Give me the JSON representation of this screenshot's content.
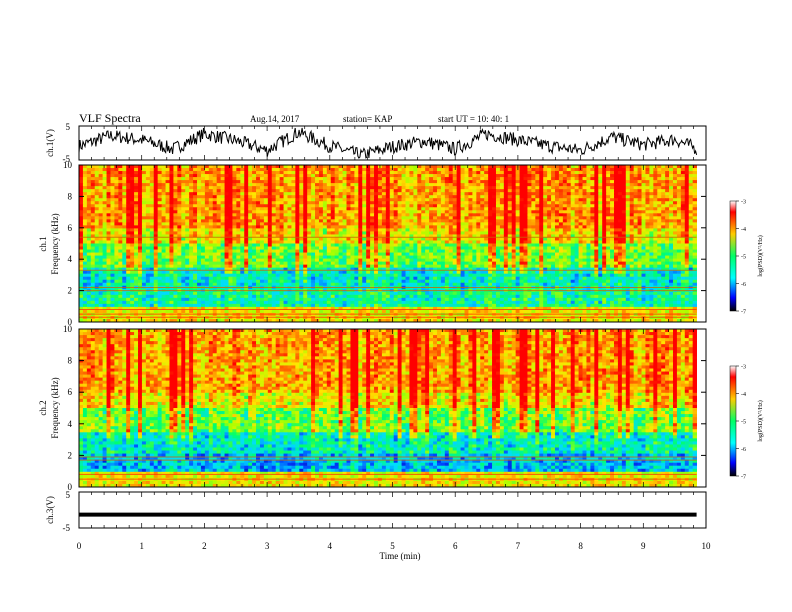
{
  "header": {
    "title": "VLF Spectra",
    "date": "Aug.14, 2017",
    "station": "station= KAP",
    "start": "start  UT  =    10: 40: 1"
  },
  "colors": {
    "spectrum_low": "#0000ff",
    "spectrum_mid": "#00ff66",
    "spectrum_high": "#ff0000",
    "trace": "#000000"
  },
  "chart_data": [
    {
      "type": "line",
      "panel": "ch1-waveform",
      "ylabel": "ch.1(V)",
      "x_range": [
        0,
        9.85
      ],
      "ylim": [
        -5,
        5
      ],
      "yticks": [
        "5",
        "-5"
      ],
      "x": [
        0,
        0.5,
        1,
        1.5,
        2,
        2.5,
        3,
        3.5,
        4,
        4.5,
        5,
        5.5,
        6,
        6.5,
        7,
        7.5,
        8,
        8.5,
        9,
        9.5,
        9.85
      ],
      "y": [
        -0.5,
        1.2,
        0.5,
        -1,
        1.5,
        0.4,
        -1.2,
        1.8,
        -0.5,
        -2,
        -0.6,
        0.3,
        -1,
        1.5,
        0.5,
        -0.5,
        -1.2,
        1,
        -0.3,
        0.6,
        -0.9
      ]
    },
    {
      "type": "heatmap",
      "panel": "ch1-spectrogram",
      "ylabel": "ch.1\nFrequency (kHz)",
      "ylim": [
        0,
        10
      ],
      "yticks": [
        "0",
        "2",
        "4",
        "6",
        "8",
        "10"
      ],
      "colorbar": {
        "label": "log(PSD)(V²/Hz)",
        "range": [
          -7,
          -3
        ],
        "ticks": [
          "-3",
          "-4",
          "-5",
          "-6",
          "-7"
        ]
      }
    },
    {
      "type": "heatmap",
      "panel": "ch2-spectrogram",
      "ylabel": "ch.2\nFrequency (kHz)",
      "ylim": [
        0,
        10
      ],
      "yticks": [
        "0",
        "2",
        "4",
        "6",
        "8",
        "10"
      ],
      "colorbar": {
        "label": "log(PSD)(V²/Hz)",
        "range": [
          -7,
          -3
        ],
        "ticks": [
          "-3",
          "-4",
          "-5",
          "-6",
          "-7"
        ]
      }
    },
    {
      "type": "line",
      "panel": "ch3-waveform",
      "ylabel": "ch.3(V)",
      "ylim": [
        -5,
        5
      ],
      "yticks": [
        "5",
        "-5"
      ],
      "x": [
        0,
        9.85
      ],
      "y": [
        -1.3,
        -1.3
      ]
    }
  ],
  "xaxis": {
    "label": "Time  (min)",
    "ticks": [
      "0",
      "1",
      "2",
      "3",
      "4",
      "5",
      "6",
      "7",
      "8",
      "9",
      "10"
    ],
    "range": [
      0,
      10
    ]
  }
}
